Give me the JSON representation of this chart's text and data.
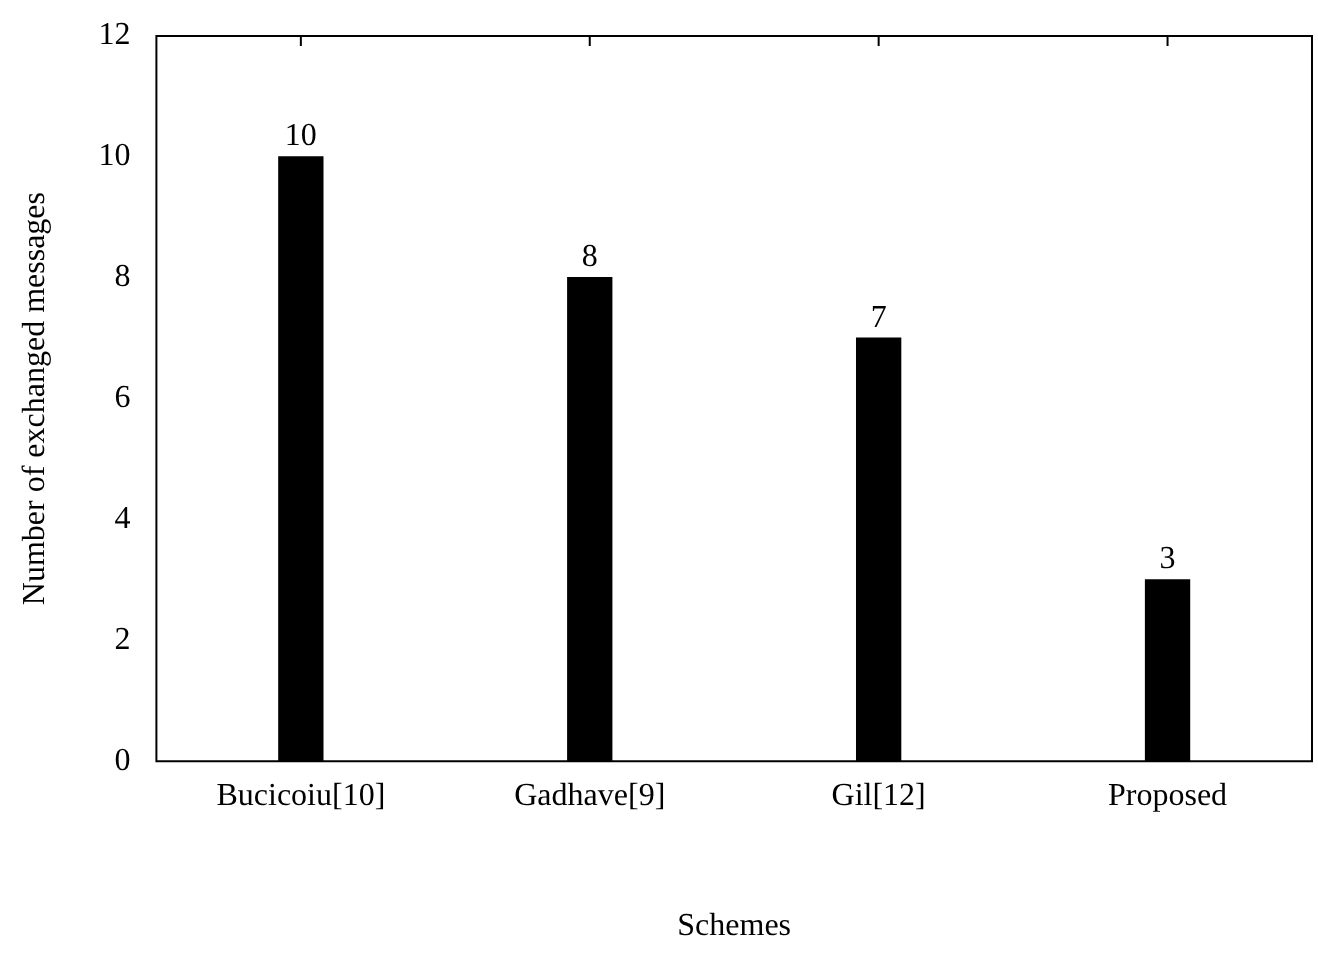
{
  "chart_data": {
    "type": "bar",
    "xlabel": "Schemes",
    "ylabel": "Number of exchanged messages",
    "categories": [
      "Bucicoiu[10]",
      "Gadhave[9]",
      "Gil[12]",
      "Proposed"
    ],
    "values": [
      10,
      8,
      7,
      3
    ],
    "color": "#000000",
    "ylim": [
      0,
      12
    ],
    "yticks": [
      0,
      2,
      4,
      6,
      8,
      10,
      12
    ],
    "grid": false,
    "legend": false,
    "data_labels": true
  }
}
